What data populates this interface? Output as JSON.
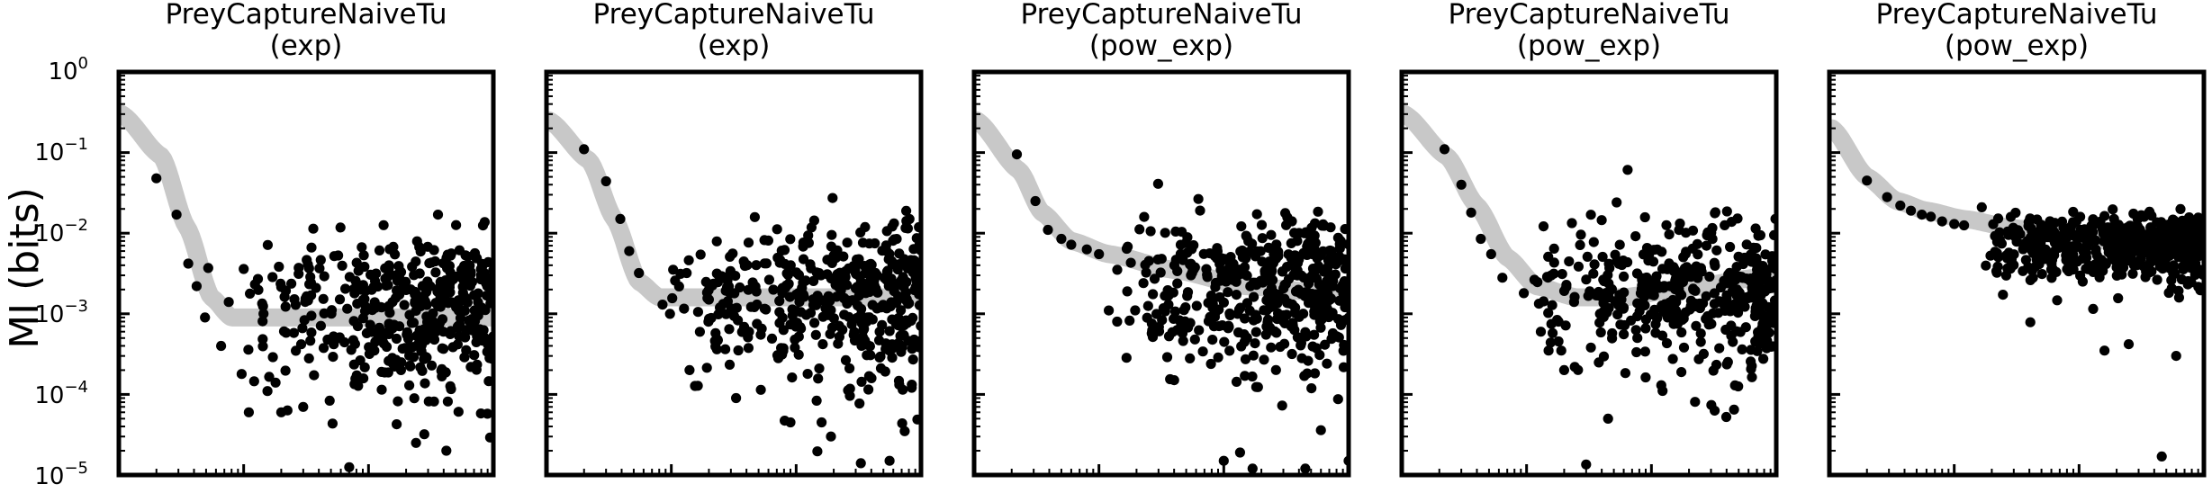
{
  "figure": {
    "ylabel": "MI (bits)",
    "y_ticks": [
      {
        "base": "10",
        "exp": "0"
      },
      {
        "base": "10",
        "exp": "−1"
      },
      {
        "base": "10",
        "exp": "−2"
      },
      {
        "base": "10",
        "exp": "−3"
      },
      {
        "base": "10",
        "exp": "−4"
      },
      {
        "base": "10",
        "exp": "−5"
      }
    ]
  },
  "chart_data": [
    {
      "type": "scatter",
      "title_line1": "PreyCaptureNaiveTu",
      "title_line2": "(exp)",
      "y_scale": "log",
      "ylim": [
        1e-05,
        1
      ],
      "x_scale": "log",
      "xlim": [
        1,
        1000
      ],
      "grid": false,
      "fit_curve": {
        "color": "#c8c8c8",
        "x": [
          1.05,
          2.2,
          3.5,
          5.5,
          8,
          30,
          1000
        ],
        "y": [
          0.3,
          0.09,
          0.012,
          0.0016,
          0.0009,
          0.0009,
          0.0009
        ]
      },
      "scatter_seed": 11,
      "scatter_base": 0.0013,
      "scatter_spread": 0.45,
      "scatter_tail": 1.3,
      "points": [
        {
          "x": 2.0,
          "y": 0.048
        },
        {
          "x": 2.9,
          "y": 0.017
        },
        {
          "x": 3.6,
          "y": 0.0042
        },
        {
          "x": 4.2,
          "y": 0.0022
        },
        {
          "x": 5.2,
          "y": 0.0037
        },
        {
          "x": 4.9,
          "y": 0.0009
        },
        {
          "x": 6.6,
          "y": 0.0004
        },
        {
          "x": 7.6,
          "y": 0.0014
        },
        {
          "x": 10,
          "y": 0.0036
        },
        {
          "x": 11,
          "y": 6e-05
        },
        {
          "x": 13,
          "y": 0.0027
        },
        {
          "x": 18,
          "y": 0.00014
        },
        {
          "x": 20,
          "y": 6e-05
        },
        {
          "x": 30,
          "y": 7e-05
        },
        {
          "x": 70,
          "y": 1.25e-05
        },
        {
          "x": 240,
          "y": 2.5e-05
        },
        {
          "x": 280,
          "y": 3.2e-05
        },
        {
          "x": 420,
          "y": 2e-05
        }
      ],
      "scatter_n": 420,
      "scatter_xrange": [
        9,
        1000
      ]
    },
    {
      "type": "scatter",
      "title_line1": "PreyCaptureNaiveTu",
      "title_line2": "(exp)",
      "y_scale": "log",
      "ylim": [
        1e-05,
        1
      ],
      "x_scale": "log",
      "xlim": [
        1,
        1000
      ],
      "grid": false,
      "fit_curve": {
        "color": "#c8c8c8",
        "x": [
          1.05,
          2.2,
          3.5,
          5.5,
          8,
          30,
          1000
        ],
        "y": [
          0.25,
          0.08,
          0.015,
          0.0025,
          0.0016,
          0.0016,
          0.0016
        ]
      },
      "scatter_seed": 23,
      "scatter_base": 0.0019,
      "scatter_spread": 0.42,
      "scatter_tail": 1.3,
      "points": [
        {
          "x": 2.0,
          "y": 0.11
        },
        {
          "x": 3.0,
          "y": 0.044
        },
        {
          "x": 3.9,
          "y": 0.015
        },
        {
          "x": 4.6,
          "y": 0.006
        },
        {
          "x": 5.5,
          "y": 0.0032
        },
        {
          "x": 8.5,
          "y": 0.0013
        },
        {
          "x": 14,
          "y": 0.0002
        },
        {
          "x": 20,
          "y": 0.0015
        },
        {
          "x": 33,
          "y": 9e-05
        },
        {
          "x": 90,
          "y": 4.5e-05
        },
        {
          "x": 160,
          "y": 4.5e-05
        },
        {
          "x": 190,
          "y": 3e-05
        },
        {
          "x": 330,
          "y": 1.4e-05
        },
        {
          "x": 560,
          "y": 1.5e-05
        },
        {
          "x": 740,
          "y": 3.5e-05
        }
      ],
      "scatter_n": 440,
      "scatter_xrange": [
        9,
        1000
      ]
    },
    {
      "type": "scatter",
      "title_line1": "PreyCaptureNaiveTu",
      "title_line2": "(pow_exp)",
      "y_scale": "log",
      "ylim": [
        1e-05,
        1
      ],
      "x_scale": "log",
      "xlim": [
        1,
        1000
      ],
      "grid": false,
      "fit_curve": {
        "color": "#c8c8c8",
        "x": [
          1.05,
          2.3,
          3.5,
          6,
          12,
          40,
          150,
          1000
        ],
        "y": [
          0.25,
          0.06,
          0.018,
          0.008,
          0.0055,
          0.0035,
          0.0022,
          0.0017
        ]
      },
      "scatter_seed": 37,
      "scatter_base": 0.0022,
      "scatter_spread": 0.42,
      "scatter_tail": 1.25,
      "points": [
        {
          "x": 2.2,
          "y": 0.095
        },
        {
          "x": 3.1,
          "y": 0.025
        },
        {
          "x": 3.9,
          "y": 0.011
        },
        {
          "x": 5.0,
          "y": 0.0085
        },
        {
          "x": 6.0,
          "y": 0.0072
        },
        {
          "x": 8.0,
          "y": 0.0063
        },
        {
          "x": 10,
          "y": 0.0055
        },
        {
          "x": 12,
          "y": 0.0011
        },
        {
          "x": 14,
          "y": 0.0008
        },
        {
          "x": 17,
          "y": 0.0068
        },
        {
          "x": 40,
          "y": 0.00015
        },
        {
          "x": 100,
          "y": 1.5e-05
        },
        {
          "x": 135,
          "y": 1.9e-05
        },
        {
          "x": 170,
          "y": 1.2e-05
        },
        {
          "x": 450,
          "y": 1.2e-05
        },
        {
          "x": 600,
          "y": 3.6e-05
        },
        {
          "x": 1000,
          "y": 1.5e-05
        }
      ],
      "scatter_n": 440,
      "scatter_xrange": [
        12,
        1000
      ]
    },
    {
      "type": "scatter",
      "title_line1": "PreyCaptureNaiveTu",
      "title_line2": "(pow_exp)",
      "y_scale": "log",
      "ylim": [
        1e-05,
        1
      ],
      "x_scale": "log",
      "xlim": [
        1,
        1000
      ],
      "grid": false,
      "fit_curve": {
        "color": "#c8c8c8",
        "x": [
          1.05,
          2.3,
          4,
          7,
          12,
          25,
          60,
          150,
          1000
        ],
        "y": [
          0.3,
          0.09,
          0.022,
          0.005,
          0.0022,
          0.0016,
          0.0016,
          0.002,
          0.003
        ]
      },
      "scatter_seed": 51,
      "scatter_base": 0.0021,
      "scatter_spread": 0.42,
      "scatter_tail": 1.25,
      "points": [
        {
          "x": 2.2,
          "y": 0.11
        },
        {
          "x": 3.0,
          "y": 0.04
        },
        {
          "x": 3.6,
          "y": 0.018
        },
        {
          "x": 4.3,
          "y": 0.0085
        },
        {
          "x": 5.2,
          "y": 0.0055
        },
        {
          "x": 6.4,
          "y": 0.0028
        },
        {
          "x": 9.5,
          "y": 0.0018
        },
        {
          "x": 13,
          "y": 0.0006
        },
        {
          "x": 15,
          "y": 0.00035
        },
        {
          "x": 18,
          "y": 0.0008
        },
        {
          "x": 20,
          "y": 0.0002
        },
        {
          "x": 24,
          "y": 0.0014
        },
        {
          "x": 30,
          "y": 1.35e-05
        },
        {
          "x": 45,
          "y": 5e-05
        },
        {
          "x": 60,
          "y": 0.0029
        },
        {
          "x": 120,
          "y": 0.00013
        }
      ],
      "scatter_n": 420,
      "scatter_xrange": [
        9,
        1000
      ]
    },
    {
      "type": "scatter",
      "title_line1": "PreyCaptureNaiveTu",
      "title_line2": "(pow_exp)",
      "y_scale": "log",
      "ylim": [
        1e-05,
        1
      ],
      "x_scale": "log",
      "xlim": [
        1,
        1000
      ],
      "grid": false,
      "fit_curve": {
        "color": "#c8c8c8",
        "x": [
          1.05,
          2.0,
          3.5,
          6,
          12,
          30,
          100,
          300,
          1000
        ],
        "y": [
          0.2,
          0.05,
          0.025,
          0.019,
          0.015,
          0.0115,
          0.009,
          0.007,
          0.0055
        ]
      },
      "scatter_seed": 67,
      "scatter_base": 0.0078,
      "scatter_spread": 0.16,
      "scatter_tail": 1.45,
      "points": [
        {
          "x": 2.0,
          "y": 0.045
        },
        {
          "x": 2.9,
          "y": 0.028
        },
        {
          "x": 3.7,
          "y": 0.022
        },
        {
          "x": 4.5,
          "y": 0.019
        },
        {
          "x": 5.5,
          "y": 0.017
        },
        {
          "x": 6.5,
          "y": 0.016
        },
        {
          "x": 8.0,
          "y": 0.014
        },
        {
          "x": 10,
          "y": 0.013
        },
        {
          "x": 12,
          "y": 0.0125
        },
        {
          "x": 160,
          "y": 0.00035
        },
        {
          "x": 250,
          "y": 0.00042
        },
        {
          "x": 460,
          "y": 1.7e-05
        },
        {
          "x": 600,
          "y": 0.0003
        }
      ],
      "scatter_n": 500,
      "scatter_xrange": [
        14,
        1000
      ]
    }
  ]
}
